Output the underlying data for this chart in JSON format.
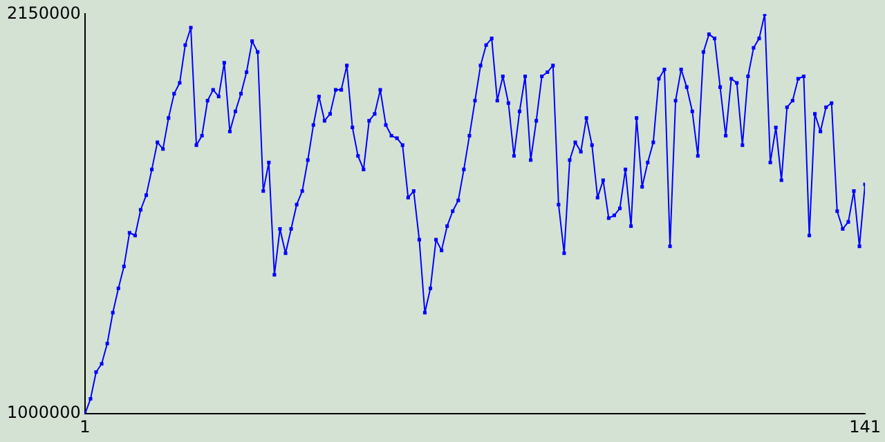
{
  "chart_data": {
    "type": "line",
    "marker": "square",
    "grid": false,
    "legend": false,
    "xlim": [
      1,
      141
    ],
    "xticks": [
      1,
      141
    ],
    "ylim": [
      1000000,
      2150000
    ],
    "yticks": [
      1000000,
      2150000
    ],
    "x": [
      1,
      2,
      3,
      4,
      5,
      6,
      7,
      8,
      9,
      10,
      11,
      12,
      13,
      14,
      15,
      16,
      17,
      18,
      19,
      20,
      21,
      22,
      23,
      24,
      25,
      26,
      27,
      28,
      29,
      30,
      31,
      32,
      33,
      34,
      35,
      36,
      37,
      38,
      39,
      40,
      41,
      42,
      43,
      44,
      45,
      46,
      47,
      48,
      49,
      50,
      51,
      52,
      53,
      54,
      55,
      56,
      57,
      58,
      59,
      60,
      61,
      62,
      63,
      64,
      65,
      66,
      67,
      68,
      69,
      70,
      71,
      72,
      73,
      74,
      75,
      76,
      77,
      78,
      79,
      80,
      81,
      82,
      83,
      84,
      85,
      86,
      87,
      88,
      89,
      90,
      91,
      92,
      93,
      94,
      95,
      96,
      97,
      98,
      99,
      100,
      101,
      102,
      103,
      104,
      105,
      106,
      107,
      108,
      109,
      110,
      111,
      112,
      113,
      114,
      115,
      116,
      117,
      118,
      119,
      120,
      121,
      122,
      123,
      124,
      125,
      126,
      127,
      128,
      129,
      130,
      131,
      132,
      133,
      134,
      135,
      136,
      137,
      138,
      139,
      140,
      141
    ],
    "series": [
      {
        "color": "#0000ff",
        "values": [
          1000000,
          1043000,
          1120000,
          1144000,
          1202000,
          1291000,
          1361000,
          1424000,
          1521000,
          1513000,
          1587000,
          1629000,
          1703000,
          1781000,
          1762000,
          1851000,
          1921000,
          1952000,
          2061000,
          2111000,
          1773000,
          1800000,
          1901000,
          1932000,
          1913000,
          2010000,
          1812000,
          1870000,
          1921000,
          1983000,
          2072000,
          2041000,
          1641000,
          1723000,
          1400000,
          1532000,
          1462000,
          1532000,
          1602000,
          1641000,
          1730000,
          1831000,
          1913000,
          1843000,
          1863000,
          1932000,
          1932000,
          2002000,
          1824000,
          1742000,
          1703000,
          1843000,
          1863000,
          1932000,
          1831000,
          1800000,
          1793000,
          1773000,
          1622000,
          1641000,
          1501000,
          1291000,
          1361000,
          1501000,
          1470000,
          1540000,
          1583000,
          1614000,
          1703000,
          1800000,
          1901000,
          2002000,
          2061000,
          2080000,
          1901000,
          1971000,
          1894000,
          1742000,
          1870000,
          1971000,
          1730000,
          1843000,
          1971000,
          1983000,
          2002000,
          1602000,
          1462000,
          1730000,
          1781000,
          1754000,
          1851000,
          1773000,
          1622000,
          1672000,
          1563000,
          1571000,
          1591000,
          1703000,
          1540000,
          1851000,
          1653000,
          1723000,
          1781000,
          1964000,
          1991000,
          1482000,
          1901000,
          1991000,
          1940000,
          1870000,
          1742000,
          2041000,
          2092000,
          2080000,
          1940000,
          1800000,
          1964000,
          1952000,
          1773000,
          1971000,
          2053000,
          2080000,
          2150000,
          1723000,
          1824000,
          1672000,
          1882000,
          1901000,
          1964000,
          1971000,
          1513000,
          1863000,
          1812000,
          1882000,
          1894000,
          1583000,
          1532000,
          1552000,
          1641000,
          1482000,
          1660000
        ]
      }
    ]
  }
}
